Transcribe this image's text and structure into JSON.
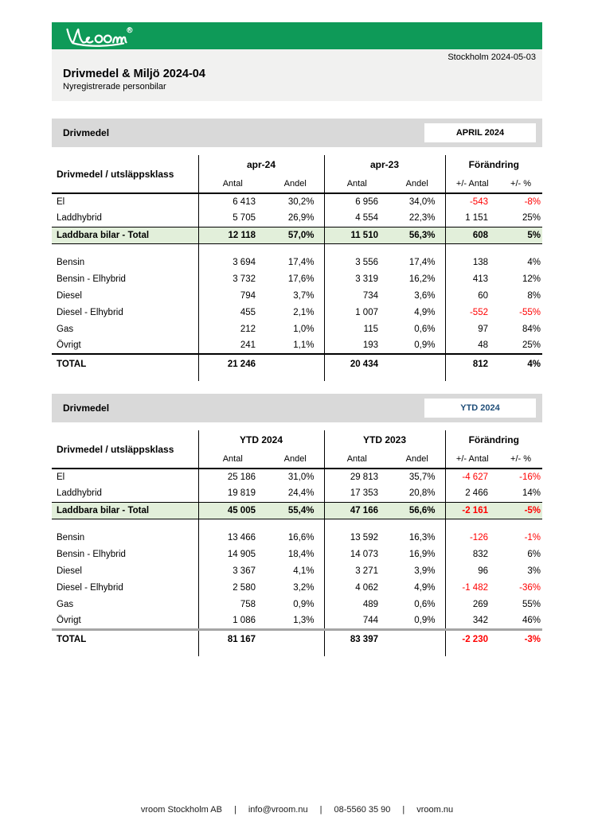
{
  "page": {
    "brand_name": "vroom",
    "date": "Stockholm 2024-05-03",
    "title": "Drivmedel & Miljö 2024-04",
    "subtitle": "Nyregistrerade personbilar"
  },
  "colors": {
    "brand_green": "#0e9a58",
    "band_gray": "#d9d9d9",
    "head_block_gray": "#f1f1f0",
    "highlight_green": "#e2efda",
    "negative_red": "#ff0000",
    "ytd_badge_blue": "#1f4e79",
    "april_badge_black": "#000000"
  },
  "footer": {
    "separator": "|",
    "segments": [
      "vroom Stockholm AB",
      "info@vroom.nu",
      "08-5560 35 90",
      "vroom.nu"
    ]
  },
  "tables": [
    {
      "section_title": "Drivmedel",
      "badge": "APRIL 2024",
      "badge_color": "#000000",
      "header": {
        "label_col": "Drivmedel / utsläppsklass",
        "group_current": "apr-24",
        "group_previous": "apr-23",
        "group_change": "Förändring",
        "sub": [
          "Antal",
          "Andel",
          "Antal",
          "Andel",
          "+/- Antal",
          "+/- %"
        ]
      },
      "rows": [
        {
          "style": "normal",
          "label": "El",
          "cells": [
            "6 413",
            "30,2%",
            "6 956",
            "34,0%",
            "-543",
            "-8%"
          ]
        },
        {
          "style": "normal",
          "label": "Laddhybrid",
          "cells": [
            "5 705",
            "26,9%",
            "4 554",
            "22,3%",
            "1 151",
            "25%"
          ]
        },
        {
          "style": "highlight",
          "label": "Laddbara bilar - Total",
          "cells": [
            "12 118",
            "57,0%",
            "11 510",
            "56,3%",
            "608",
            "5%"
          ]
        },
        {
          "style": "spacer",
          "label": "",
          "cells": [
            "",
            "",
            "",
            "",
            "",
            ""
          ]
        },
        {
          "style": "normal",
          "label": "Bensin",
          "cells": [
            "3 694",
            "17,4%",
            "3 556",
            "17,4%",
            "138",
            "4%"
          ]
        },
        {
          "style": "normal",
          "label": "Bensin - Elhybrid",
          "cells": [
            "3 732",
            "17,6%",
            "3 319",
            "16,2%",
            "413",
            "12%"
          ]
        },
        {
          "style": "normal",
          "label": "Diesel",
          "cells": [
            "794",
            "3,7%",
            "734",
            "3,6%",
            "60",
            "8%"
          ]
        },
        {
          "style": "normal",
          "label": "Diesel - Elhybrid",
          "cells": [
            "455",
            "2,1%",
            "1 007",
            "4,9%",
            "-552",
            "-55%"
          ]
        },
        {
          "style": "normal",
          "label": "Gas",
          "cells": [
            "212",
            "1,0%",
            "115",
            "0,6%",
            "97",
            "84%"
          ]
        },
        {
          "style": "normal",
          "label": "Övrigt",
          "cells": [
            "241",
            "1,1%",
            "193",
            "0,9%",
            "48",
            "25%"
          ]
        },
        {
          "style": "total",
          "label": "TOTAL",
          "cells": [
            "21 246",
            "",
            "20 434",
            "",
            "812",
            "4%"
          ]
        },
        {
          "style": "stub",
          "label": "",
          "cells": [
            "",
            "",
            "",
            "",
            "",
            ""
          ]
        }
      ]
    },
    {
      "section_title": "Drivmedel",
      "badge": "YTD 2024",
      "badge_color": "#1f4e79",
      "header": {
        "label_col": "Drivmedel / utsläppsklass",
        "group_current": "YTD 2024",
        "group_previous": "YTD 2023",
        "group_change": "Förändring",
        "sub": [
          "Antal",
          "Andel",
          "Antal",
          "Andel",
          "+/- Antal",
          "+/- %"
        ]
      },
      "rows": [
        {
          "style": "normal",
          "label": "El",
          "cells": [
            "25 186",
            "31,0%",
            "29 813",
            "35,7%",
            "-4 627",
            "-16%"
          ]
        },
        {
          "style": "normal",
          "label": "Laddhybrid",
          "cells": [
            "19 819",
            "24,4%",
            "17 353",
            "20,8%",
            "2 466",
            "14%"
          ]
        },
        {
          "style": "highlight",
          "label": "Laddbara bilar - Total",
          "cells": [
            "45 005",
            "55,4%",
            "47 166",
            "56,6%",
            "-2 161",
            "-5%"
          ]
        },
        {
          "style": "spacer",
          "label": "",
          "cells": [
            "",
            "",
            "",
            "",
            "",
            ""
          ]
        },
        {
          "style": "normal",
          "label": "Bensin",
          "cells": [
            "13 466",
            "16,6%",
            "13 592",
            "16,3%",
            "-126",
            "-1%"
          ]
        },
        {
          "style": "normal",
          "label": "Bensin - Elhybrid",
          "cells": [
            "14 905",
            "18,4%",
            "14 073",
            "16,9%",
            "832",
            "6%"
          ]
        },
        {
          "style": "normal",
          "label": "Diesel",
          "cells": [
            "3 367",
            "4,1%",
            "3 271",
            "3,9%",
            "96",
            "3%"
          ]
        },
        {
          "style": "normal",
          "label": "Diesel - Elhybrid",
          "cells": [
            "2 580",
            "3,2%",
            "4 062",
            "4,9%",
            "-1 482",
            "-36%"
          ]
        },
        {
          "style": "normal",
          "label": "Gas",
          "cells": [
            "758",
            "0,9%",
            "489",
            "0,6%",
            "269",
            "55%"
          ]
        },
        {
          "style": "normal",
          "label": "Övrigt",
          "cells": [
            "1 086",
            "1,3%",
            "744",
            "0,9%",
            "342",
            "46%"
          ]
        },
        {
          "style": "total",
          "label": "TOTAL",
          "cells": [
            "81 167",
            "",
            "83 397",
            "",
            "-2 230",
            "-3%"
          ]
        },
        {
          "style": "stub",
          "label": "",
          "cells": [
            "",
            "",
            "",
            "",
            "",
            ""
          ]
        }
      ]
    }
  ]
}
